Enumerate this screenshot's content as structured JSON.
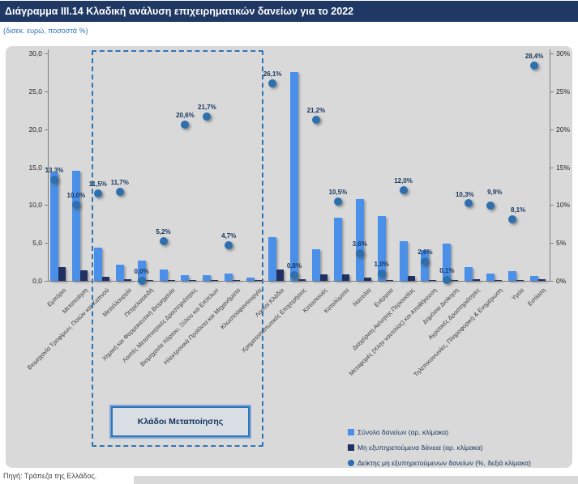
{
  "header": {
    "title": "Διάγραμμα III.14 Κλαδική ανάλυση επιχειρηματικών δανείων για το 2022",
    "subtitle": "(δισεκ. ευρώ, ποσοστά %)"
  },
  "source": "Πηγή: Τράπεζα της Ελλάδος.",
  "annotation_box": {
    "label": "Κλάδοι Μεταποίησης"
  },
  "colors": {
    "title_bar": "#1F3864",
    "total_bar": "#4A8FE8",
    "npl_bar": "#1F3061",
    "ratio_dot": "#2E6FAE",
    "panel_bg": "#D9D9D9",
    "dashed_box": "#2E75B6"
  },
  "chart_data": {
    "type": "bar",
    "title": "Διάγραμμα III.14 Κλαδική ανάλυση επιχειρηματικών δανείων για το 2022",
    "subtitle": "(δισεκ. ευρώ, ποσοστά %)",
    "grid": false,
    "legend_position": "bottom-right",
    "categories": [
      "Εμπόριο",
      "Μεταποίηση",
      "Βιομηχανία Τροφίμων, Ποτών και Καπνού",
      "Μεταλλουργία",
      "Πετρελαιοειδή",
      "Χημική και Φαρμακευτική Βιομηχανία",
      "Λοιπές Μεταποιητικές Δραστηριότητες",
      "Βιομηχανία Χάρτου, Ξύλου και Επίπλων",
      "Ηλεκτρονικά Προϊόντα και Μηχανήματα",
      "Κλωστοϋφαντουργία",
      "Λοιποί Κλάδοι",
      "Χρηματοπιστωτικές Επιχειρήσεις",
      "Κατασκευές",
      "Καταλύματα",
      "Ναυτιλία",
      "Ενέργεια",
      "Διαχείριση Ακίνητης Περιουσίας",
      "Μεταφορές (πλην ναυτιλίας) και Αποθήκευση",
      "Δημόσια Διοίκηση",
      "Αγροτικές Δραστηριότητες",
      "Τηλεπικοινωνίες, Πληροφορική & Ενημέρωση",
      "Υγεία",
      "Εστίαση"
    ],
    "series": [
      {
        "name": "Σύνολο δανείων (αρ. κλίμακα)",
        "type": "bar",
        "axis": "left",
        "values": [
          14.3,
          14.5,
          4.4,
          2.1,
          2.7,
          1.5,
          0.8,
          0.7,
          0.95,
          0.45,
          5.8,
          27.5,
          4.2,
          8.3,
          10.8,
          8.5,
          5.2,
          4.1,
          4.9,
          1.8,
          0.95,
          1.3,
          0.6
        ]
      },
      {
        "name": "Μη εξυπηρετούμενα δάνεια (αρ. κλίμακα)",
        "type": "bar",
        "axis": "left",
        "values": [
          1.8,
          1.4,
          0.5,
          0.25,
          0.1,
          0.08,
          0.16,
          0.15,
          0.05,
          0.1,
          1.5,
          0.25,
          0.9,
          0.87,
          0.38,
          0.09,
          0.62,
          0.11,
          0.05,
          0.19,
          0.09,
          0.11,
          0.17
        ]
      },
      {
        "name": "Δείκτης μη εξυπηρετούμενων δανείων (%, δεξιά κλίμακα)",
        "type": "scatter",
        "axis": "right",
        "values": [
          13.3,
          10.0,
          11.5,
          11.7,
          0.0,
          5.2,
          20.6,
          21.7,
          4.7,
          null,
          26.1,
          0.8,
          21.2,
          10.5,
          3.6,
          1.0,
          12.0,
          2.6,
          0.1,
          10.3,
          9.9,
          8.1,
          28.4
        ],
        "labels": [
          "13,3%",
          "10,0%",
          "11,5%",
          "11,7%",
          "0,0%",
          "5,2%",
          "20,6%",
          "21,7%",
          "4,7%",
          "",
          "26,1%",
          "0,8%",
          "21,2%",
          "10,5%",
          "3,6%",
          "1,0%",
          "12,0%",
          "2,6%",
          "0,1%",
          "10,3%",
          "9,9%",
          "8,1%",
          "28,4%"
        ]
      }
    ],
    "left_axis": {
      "range": [
        0,
        30
      ],
      "ticks": [
        "0,0",
        "5,0",
        "10,0",
        "15,0",
        "20,0",
        "25,0",
        "30,0"
      ]
    },
    "right_axis": {
      "range": [
        0,
        30
      ],
      "ticks": [
        "0%",
        "5%",
        "10%",
        "15%",
        "20%",
        "25%",
        "30%"
      ]
    },
    "annotation": {
      "label": "Κλάδοι Μεταποίησης",
      "covers_categories": [
        2,
        9
      ]
    },
    "legend": [
      {
        "swatch": "square-light-blue",
        "label": "Σύνολο δανείων (αρ. κλίμακα)"
      },
      {
        "swatch": "square-dark-navy",
        "label": "Μη εξυπηρετούμενα δάνεια (αρ. κλίμακα)"
      },
      {
        "swatch": "circle-blue",
        "label": "Δείκτης μη εξυπηρετούμενων δανείων (%, δεξιά κλίμακα)"
      }
    ]
  }
}
